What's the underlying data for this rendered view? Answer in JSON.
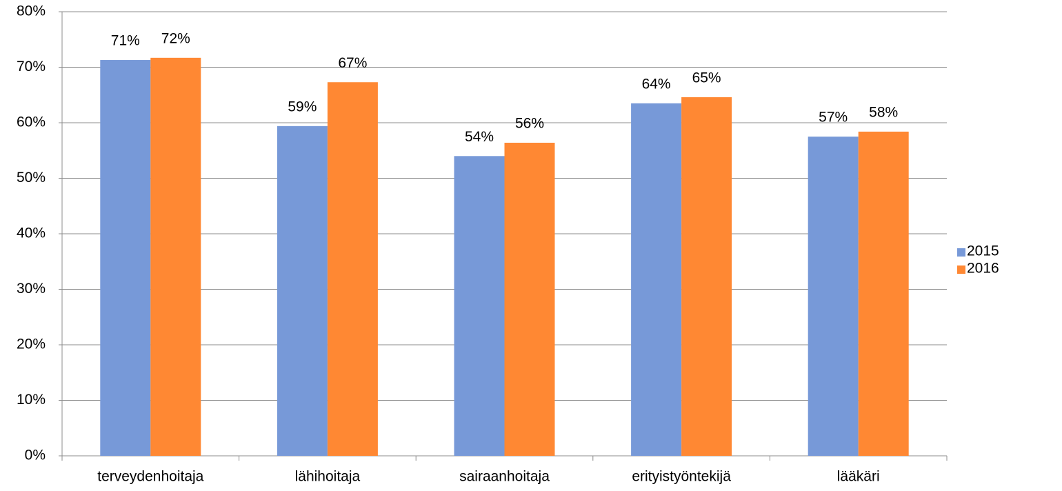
{
  "chart_data": {
    "type": "bar",
    "categories": [
      "terveydenhoitaja",
      "lähihoitaja",
      "sairaanhoitaja",
      "erityistyöntekijä",
      "lääkäri"
    ],
    "series": [
      {
        "name": "2015",
        "color": "#7799d8",
        "values": [
          71.3,
          59.4,
          54.0,
          63.5,
          57.5
        ],
        "value_labels": [
          "71%",
          "59%",
          "54%",
          "64%",
          "57%"
        ]
      },
      {
        "name": "2016",
        "color": "#ff8833",
        "values": [
          71.7,
          67.3,
          56.4,
          64.6,
          58.4
        ],
        "value_labels": [
          "72%",
          "67%",
          "56%",
          "65%",
          "58%"
        ]
      }
    ],
    "ylim": [
      0,
      80
    ],
    "yticks": [
      {
        "value": 0,
        "label": "0%"
      },
      {
        "value": 10,
        "label": "10%"
      },
      {
        "value": 20,
        "label": "20%"
      },
      {
        "value": 30,
        "label": "30%"
      },
      {
        "value": 40,
        "label": "40%"
      },
      {
        "value": 50,
        "label": "50%"
      },
      {
        "value": 60,
        "label": "60%"
      },
      {
        "value": 70,
        "label": "70%"
      },
      {
        "value": 80,
        "label": "80%"
      }
    ],
    "grid": true,
    "legend": "right"
  }
}
